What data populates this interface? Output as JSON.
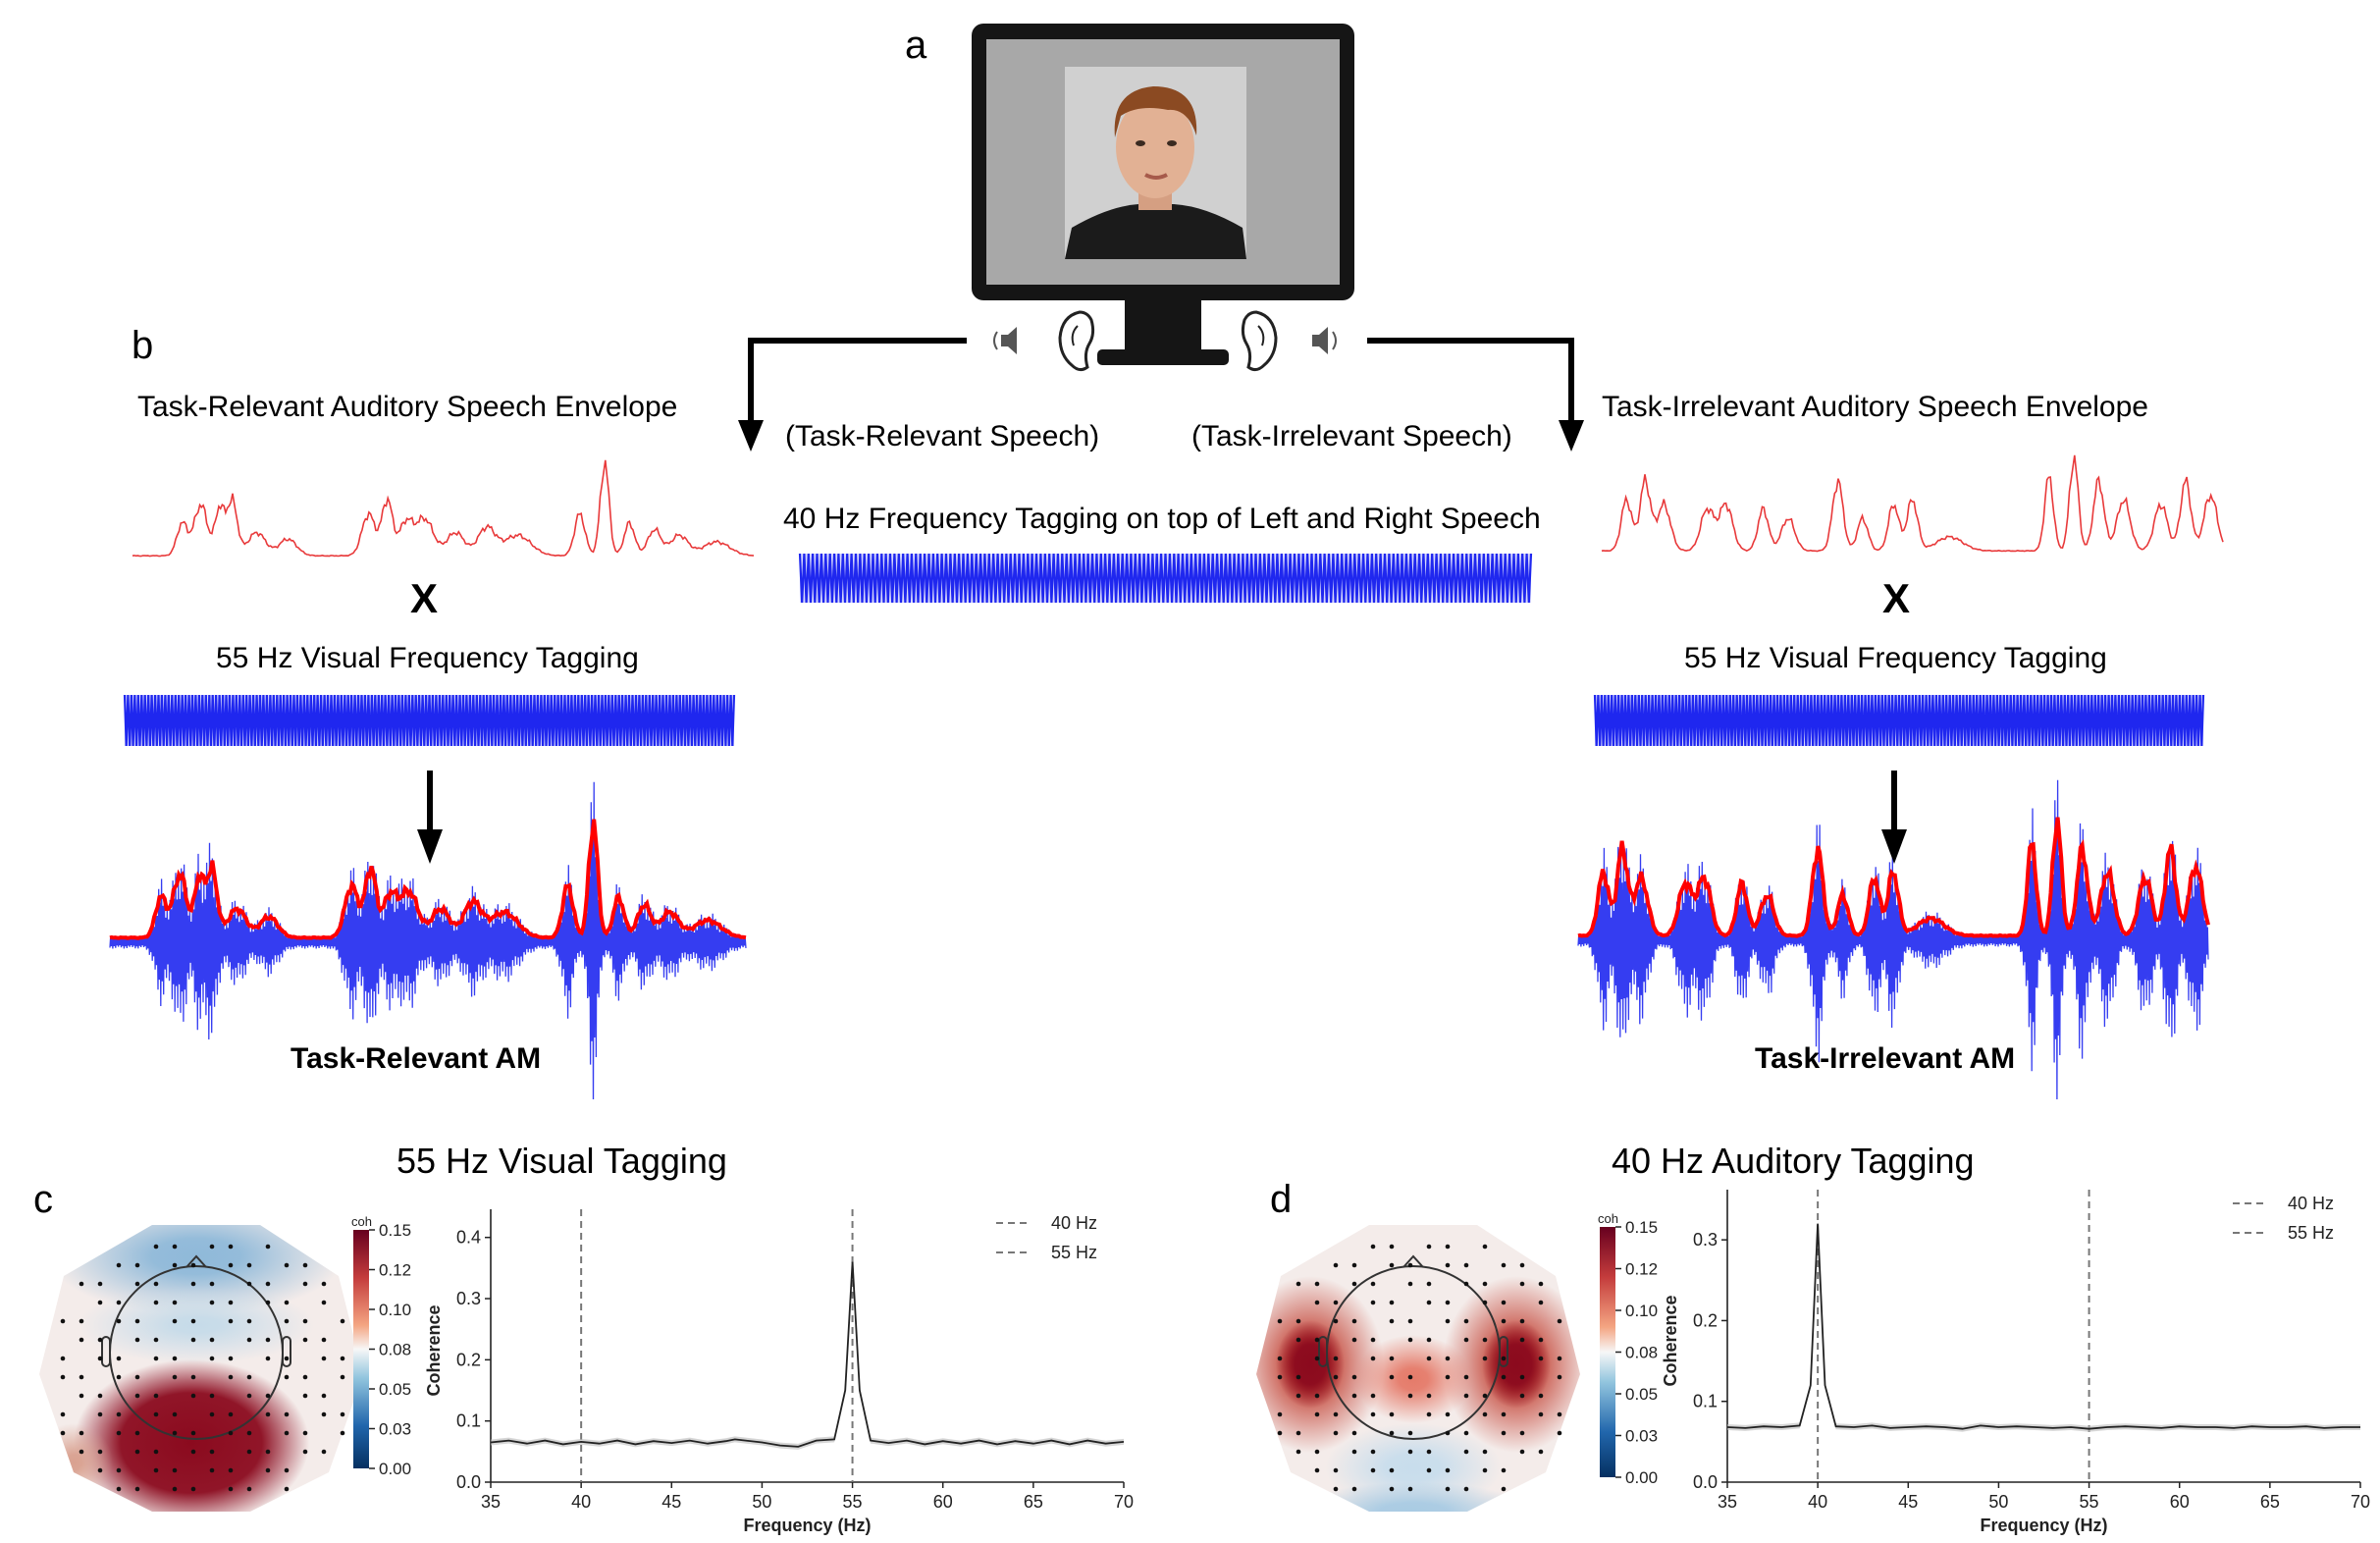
{
  "panels": {
    "a": "a",
    "b": "b",
    "c": "c",
    "d": "d"
  },
  "left": {
    "envelope_title": "Task-Relevant Auditory Speech Envelope",
    "mult_symbol": "X",
    "tagging_title": "55 Hz Visual Frequency Tagging",
    "am_title": "Task-Relevant AM"
  },
  "right": {
    "envelope_title": "Task-Irrelevant Auditory Speech Envelope",
    "mult_symbol": "X",
    "tagging_title": "55 Hz Visual Frequency Tagging",
    "am_title": "Task-Irrelevant AM"
  },
  "center": {
    "relevant_speech": "(Task-Relevant Speech)",
    "irrelevant_speech": "(Task-Irrelevant Speech)",
    "tagging_title": "40 Hz Frequency Tagging on top of Left and Right Speech"
  },
  "colors": {
    "envelope": "#e8393a",
    "carrier": "#1f28f0",
    "am_envelope": "#ff0000",
    "trace": "#222222",
    "vline": "#777777"
  },
  "icons": [
    "monitor-icon",
    "face-image",
    "speaker-icon",
    "ear-icon",
    "arrow-icon"
  ],
  "panel_c": {
    "title": "55 Hz Visual Tagging",
    "colorbar": {
      "label": "coh",
      "ticks": [
        "0.15",
        "0.12",
        "0.10",
        "0.08",
        "0.05",
        "0.03",
        "0.00"
      ]
    },
    "chart_data": {
      "type": "line",
      "xlabel": "Frequency (Hz)",
      "ylabel": "Coherence",
      "xlim": [
        35,
        70
      ],
      "ylim": [
        0,
        0.43
      ],
      "xticks": [
        "35",
        "40",
        "45",
        "50",
        "55",
        "60",
        "65",
        "70"
      ],
      "yticks": [
        "0.0",
        "0.1",
        "0.2",
        "0.3",
        "0.4"
      ],
      "legend": [
        "40 Hz",
        "55 Hz"
      ],
      "legend_position": "top-right",
      "vlines": [
        40,
        55
      ],
      "series": [
        {
          "x": [
            35,
            36,
            37,
            38,
            39,
            40,
            41,
            42,
            43,
            44,
            45,
            46,
            47,
            48,
            48.5,
            50,
            51,
            52,
            53,
            54,
            54.6,
            55,
            55.4,
            56,
            57,
            58,
            59,
            60,
            61,
            62,
            63,
            64,
            65,
            66,
            67,
            68,
            69,
            70
          ],
          "y": [
            0.065,
            0.068,
            0.063,
            0.068,
            0.062,
            0.066,
            0.063,
            0.068,
            0.062,
            0.067,
            0.064,
            0.068,
            0.063,
            0.067,
            0.07,
            0.065,
            0.06,
            0.058,
            0.068,
            0.07,
            0.15,
            0.36,
            0.15,
            0.068,
            0.064,
            0.068,
            0.062,
            0.067,
            0.063,
            0.068,
            0.062,
            0.067,
            0.063,
            0.068,
            0.062,
            0.068,
            0.063,
            0.066
          ]
        }
      ]
    }
  },
  "panel_d": {
    "title": "40 Hz Auditory Tagging",
    "colorbar": {
      "label": "coh",
      "ticks": [
        "0.15",
        "0.12",
        "0.10",
        "0.08",
        "0.05",
        "0.03",
        "0.00"
      ]
    },
    "chart_data": {
      "type": "line",
      "xlabel": "Frequency (Hz)",
      "ylabel": "Coherence",
      "xlim": [
        35,
        70
      ],
      "ylim": [
        0,
        0.35
      ],
      "xticks": [
        "35",
        "40",
        "45",
        "50",
        "55",
        "60",
        "65",
        "70"
      ],
      "yticks": [
        "0.0",
        "0.1",
        "0.2",
        "0.3"
      ],
      "legend": [
        "40 Hz",
        "55 Hz"
      ],
      "legend_position": "top-right",
      "vlines": [
        40,
        55
      ],
      "series": [
        {
          "x": [
            35,
            36,
            37,
            38,
            39,
            39.6,
            40,
            40.4,
            41,
            42,
            43,
            44,
            45,
            46,
            47,
            48,
            49,
            50,
            51,
            52,
            53,
            54,
            55,
            56,
            57,
            58,
            59,
            60,
            61,
            62,
            63,
            64,
            65,
            66,
            67,
            68,
            69,
            70
          ],
          "y": [
            0.068,
            0.067,
            0.069,
            0.068,
            0.07,
            0.12,
            0.32,
            0.12,
            0.069,
            0.068,
            0.07,
            0.067,
            0.068,
            0.069,
            0.068,
            0.066,
            0.07,
            0.068,
            0.069,
            0.068,
            0.067,
            0.068,
            0.066,
            0.068,
            0.069,
            0.068,
            0.067,
            0.069,
            0.068,
            0.068,
            0.067,
            0.069,
            0.068,
            0.068,
            0.069,
            0.067,
            0.068,
            0.068
          ]
        }
      ]
    }
  }
}
